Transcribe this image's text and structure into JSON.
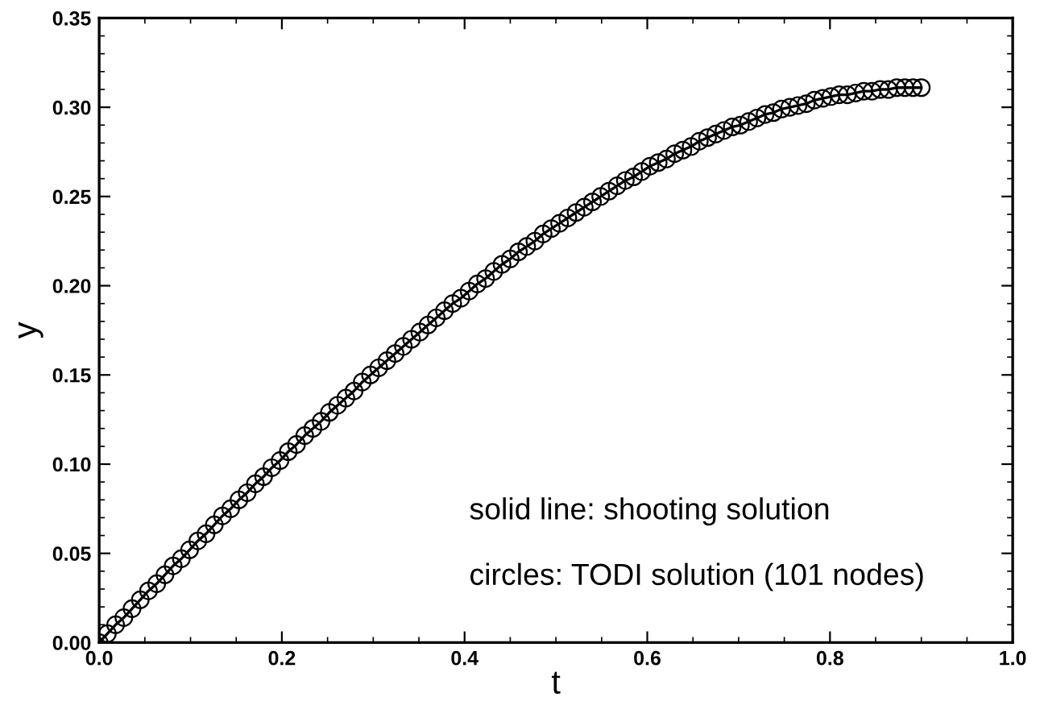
{
  "chart_data": {
    "type": "line",
    "xlabel": "t",
    "ylabel": "y",
    "x": [
      0,
      0.009,
      0.018,
      0.027,
      0.036,
      0.045,
      0.054,
      0.063,
      0.072,
      0.081,
      0.09,
      0.099,
      0.108,
      0.117,
      0.126,
      0.135,
      0.144,
      0.153,
      0.162,
      0.171,
      0.18,
      0.189,
      0.198,
      0.207,
      0.216,
      0.225,
      0.234,
      0.243,
      0.252,
      0.261,
      0.27,
      0.279,
      0.288,
      0.297,
      0.306,
      0.315,
      0.324,
      0.333,
      0.342,
      0.351,
      0.36,
      0.369,
      0.378,
      0.387,
      0.396,
      0.405,
      0.414,
      0.423,
      0.432,
      0.441,
      0.45,
      0.459,
      0.468,
      0.477,
      0.486,
      0.495,
      0.504,
      0.513,
      0.522,
      0.531,
      0.54,
      0.549,
      0.558,
      0.567,
      0.576,
      0.585,
      0.594,
      0.603,
      0.612,
      0.621,
      0.63,
      0.639,
      0.648,
      0.657,
      0.666,
      0.675,
      0.684,
      0.693,
      0.702,
      0.711,
      0.72,
      0.729,
      0.738,
      0.747,
      0.756,
      0.765,
      0.774,
      0.783,
      0.792,
      0.801,
      0.81,
      0.819,
      0.828,
      0.837,
      0.846,
      0.855,
      0.864,
      0.873,
      0.882,
      0.891,
      0.9
    ],
    "series": [
      {
        "color": "#000000",
        "values": [
          0,
          0.005,
          0.01,
          0.014,
          0.019,
          0.024,
          0.029,
          0.033,
          0.038,
          0.043,
          0.047,
          0.052,
          0.057,
          0.061,
          0.066,
          0.071,
          0.075,
          0.08,
          0.084,
          0.089,
          0.093,
          0.098,
          0.102,
          0.107,
          0.111,
          0.116,
          0.12,
          0.124,
          0.129,
          0.133,
          0.137,
          0.141,
          0.146,
          0.15,
          0.154,
          0.158,
          0.162,
          0.166,
          0.17,
          0.174,
          0.178,
          0.182,
          0.186,
          0.19,
          0.193,
          0.197,
          0.201,
          0.204,
          0.208,
          0.212,
          0.215,
          0.219,
          0.222,
          0.225,
          0.229,
          0.232,
          0.235,
          0.238,
          0.241,
          0.244,
          0.247,
          0.25,
          0.253,
          0.256,
          0.259,
          0.261,
          0.264,
          0.267,
          0.269,
          0.271,
          0.274,
          0.276,
          0.278,
          0.281,
          0.283,
          0.285,
          0.287,
          0.289,
          0.29,
          0.292,
          0.294,
          0.296,
          0.297,
          0.299,
          0.3,
          0.301,
          0.302,
          0.304,
          0.305,
          0.306,
          0.307,
          0.307,
          0.308,
          0.309,
          0.309,
          0.31,
          0.31,
          0.311,
          0.311,
          0.311,
          0.311
        ]
      }
    ],
    "marker": "circle",
    "line_style": "solid",
    "xlim": [
      0,
      1
    ],
    "ylim": [
      0,
      0.35
    ],
    "xticks": [
      {
        "value": 0,
        "label": "0.0"
      },
      {
        "value": 0.2,
        "label": "0.2"
      },
      {
        "value": 0.4,
        "label": "0.4"
      },
      {
        "value": 0.6,
        "label": "0.6"
      },
      {
        "value": 0.8,
        "label": "0.8"
      },
      {
        "value": 1,
        "label": "1.0"
      }
    ],
    "yticks": [
      {
        "value": 0,
        "label": "0.00"
      },
      {
        "value": 0.05,
        "label": "0.05"
      },
      {
        "value": 0.1,
        "label": "0.10"
      },
      {
        "value": 0.15,
        "label": "0.15"
      },
      {
        "value": 0.2,
        "label": "0.20"
      },
      {
        "value": 0.25,
        "label": "0.25"
      },
      {
        "value": 0.3,
        "label": "0.30"
      },
      {
        "value": 0.35,
        "label": "0.35"
      }
    ],
    "annotations": [
      "solid line: shooting solution",
      "circles: TODI solution (101 nodes)"
    ]
  }
}
